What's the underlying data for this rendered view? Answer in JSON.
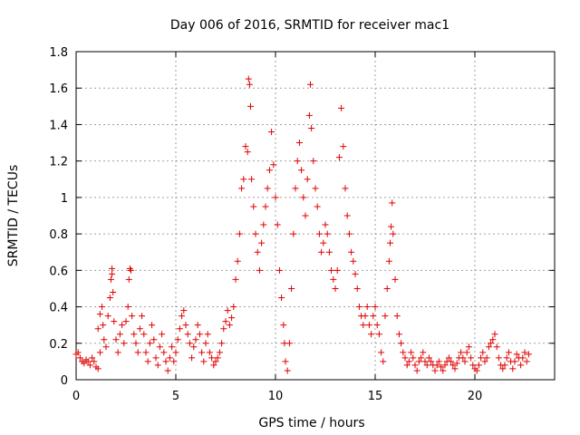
{
  "chart_data": {
    "type": "scatter",
    "title": "Day 006 of 2016, SRMTID for receiver mac1",
    "xlabel": "GPS time / hours",
    "ylabel": "SRMTID / TECUs",
    "xlim": [
      0,
      24
    ],
    "ylim": [
      0,
      1.8
    ],
    "xticks": [
      0,
      5,
      10,
      15,
      20
    ],
    "yticks": [
      0,
      0.2,
      0.4,
      0.6,
      0.8,
      1,
      1.2,
      1.4,
      1.6,
      1.8
    ],
    "xtick_labels": [
      "0",
      "5",
      "10",
      "15",
      "20"
    ],
    "ytick_labels": [
      "0",
      "0.2",
      "0.4",
      "0.6",
      "0.8",
      "1",
      "1.2",
      "1.4",
      "1.6",
      "1.8"
    ],
    "grid": true,
    "marker": "plus",
    "color": "#e00000",
    "series": [
      {
        "name": "SRMTID",
        "points": [
          [
            0.0,
            0.14
          ],
          [
            0.1,
            0.15
          ],
          [
            0.2,
            0.12
          ],
          [
            0.3,
            0.1
          ],
          [
            0.4,
            0.09
          ],
          [
            0.5,
            0.11
          ],
          [
            0.6,
            0.1
          ],
          [
            0.7,
            0.08
          ],
          [
            0.8,
            0.12
          ],
          [
            0.9,
            0.1
          ],
          [
            1.0,
            0.07
          ],
          [
            1.1,
            0.06
          ],
          [
            1.2,
            0.15
          ],
          [
            1.1,
            0.28
          ],
          [
            1.2,
            0.36
          ],
          [
            1.3,
            0.4
          ],
          [
            1.35,
            0.3
          ],
          [
            1.4,
            0.22
          ],
          [
            1.5,
            0.18
          ],
          [
            1.6,
            0.35
          ],
          [
            1.7,
            0.45
          ],
          [
            1.75,
            0.55
          ],
          [
            1.8,
            0.61
          ],
          [
            1.8,
            0.58
          ],
          [
            1.85,
            0.48
          ],
          [
            1.9,
            0.32
          ],
          [
            2.0,
            0.22
          ],
          [
            2.1,
            0.15
          ],
          [
            2.2,
            0.25
          ],
          [
            2.3,
            0.3
          ],
          [
            2.4,
            0.2
          ],
          [
            2.5,
            0.32
          ],
          [
            2.6,
            0.4
          ],
          [
            2.65,
            0.55
          ],
          [
            2.7,
            0.61
          ],
          [
            2.75,
            0.6
          ],
          [
            2.8,
            0.35
          ],
          [
            2.9,
            0.25
          ],
          [
            3.0,
            0.2
          ],
          [
            3.1,
            0.15
          ],
          [
            3.2,
            0.28
          ],
          [
            3.3,
            0.35
          ],
          [
            3.4,
            0.25
          ],
          [
            3.5,
            0.15
          ],
          [
            3.6,
            0.1
          ],
          [
            3.7,
            0.2
          ],
          [
            3.8,
            0.3
          ],
          [
            3.9,
            0.22
          ],
          [
            4.0,
            0.12
          ],
          [
            4.1,
            0.08
          ],
          [
            4.2,
            0.18
          ],
          [
            4.3,
            0.25
          ],
          [
            4.4,
            0.15
          ],
          [
            4.5,
            0.1
          ],
          [
            4.6,
            0.05
          ],
          [
            4.7,
            0.12
          ],
          [
            4.8,
            0.18
          ],
          [
            4.9,
            0.1
          ],
          [
            5.0,
            0.15
          ],
          [
            5.1,
            0.22
          ],
          [
            5.2,
            0.28
          ],
          [
            5.3,
            0.35
          ],
          [
            5.4,
            0.38
          ],
          [
            5.5,
            0.3
          ],
          [
            5.6,
            0.25
          ],
          [
            5.7,
            0.2
          ],
          [
            5.8,
            0.12
          ],
          [
            5.9,
            0.18
          ],
          [
            6.0,
            0.22
          ],
          [
            6.1,
            0.3
          ],
          [
            6.2,
            0.25
          ],
          [
            6.3,
            0.15
          ],
          [
            6.4,
            0.1
          ],
          [
            6.5,
            0.2
          ],
          [
            6.6,
            0.25
          ],
          [
            6.7,
            0.15
          ],
          [
            6.8,
            0.12
          ],
          [
            6.9,
            0.08
          ],
          [
            7.0,
            0.1
          ],
          [
            7.1,
            0.12
          ],
          [
            7.2,
            0.15
          ],
          [
            7.3,
            0.2
          ],
          [
            7.4,
            0.28
          ],
          [
            7.5,
            0.32
          ],
          [
            7.6,
            0.38
          ],
          [
            7.7,
            0.3
          ],
          [
            7.8,
            0.34
          ],
          [
            7.9,
            0.4
          ],
          [
            8.0,
            0.55
          ],
          [
            8.1,
            0.65
          ],
          [
            8.2,
            0.8
          ],
          [
            8.3,
            1.05
          ],
          [
            8.4,
            1.1
          ],
          [
            8.5,
            1.28
          ],
          [
            8.6,
            1.25
          ],
          [
            8.65,
            1.65
          ],
          [
            8.7,
            1.62
          ],
          [
            8.75,
            1.5
          ],
          [
            8.8,
            1.1
          ],
          [
            8.9,
            0.95
          ],
          [
            9.0,
            0.8
          ],
          [
            9.1,
            0.7
          ],
          [
            9.2,
            0.6
          ],
          [
            9.3,
            0.75
          ],
          [
            9.4,
            0.85
          ],
          [
            9.5,
            0.95
          ],
          [
            9.6,
            1.05
          ],
          [
            9.7,
            1.15
          ],
          [
            9.8,
            1.36
          ],
          [
            9.9,
            1.18
          ],
          [
            10.0,
            1.0
          ],
          [
            10.1,
            0.85
          ],
          [
            10.2,
            0.6
          ],
          [
            10.3,
            0.45
          ],
          [
            10.4,
            0.3
          ],
          [
            10.45,
            0.2
          ],
          [
            10.5,
            0.1
          ],
          [
            10.6,
            0.05
          ],
          [
            10.7,
            0.2
          ],
          [
            10.8,
            0.5
          ],
          [
            10.9,
            0.8
          ],
          [
            11.0,
            1.05
          ],
          [
            11.1,
            1.2
          ],
          [
            11.2,
            1.3
          ],
          [
            11.3,
            1.15
          ],
          [
            11.4,
            1.0
          ],
          [
            11.5,
            0.9
          ],
          [
            11.6,
            1.1
          ],
          [
            11.7,
            1.45
          ],
          [
            11.75,
            1.62
          ],
          [
            11.8,
            1.38
          ],
          [
            11.9,
            1.2
          ],
          [
            12.0,
            1.05
          ],
          [
            12.1,
            0.95
          ],
          [
            12.2,
            0.8
          ],
          [
            12.3,
            0.7
          ],
          [
            12.4,
            0.75
          ],
          [
            12.5,
            0.85
          ],
          [
            12.6,
            0.8
          ],
          [
            12.7,
            0.7
          ],
          [
            12.8,
            0.6
          ],
          [
            12.9,
            0.55
          ],
          [
            13.0,
            0.5
          ],
          [
            13.1,
            0.6
          ],
          [
            13.2,
            1.22
          ],
          [
            13.3,
            1.49
          ],
          [
            13.4,
            1.28
          ],
          [
            13.5,
            1.05
          ],
          [
            13.6,
            0.9
          ],
          [
            13.7,
            0.8
          ],
          [
            13.8,
            0.7
          ],
          [
            13.9,
            0.65
          ],
          [
            14.0,
            0.58
          ],
          [
            14.1,
            0.5
          ],
          [
            14.2,
            0.4
          ],
          [
            14.3,
            0.35
          ],
          [
            14.4,
            0.3
          ],
          [
            14.5,
            0.35
          ],
          [
            14.6,
            0.4
          ],
          [
            14.7,
            0.3
          ],
          [
            14.8,
            0.25
          ],
          [
            14.9,
            0.35
          ],
          [
            15.0,
            0.4
          ],
          [
            15.1,
            0.3
          ],
          [
            15.2,
            0.25
          ],
          [
            15.3,
            0.15
          ],
          [
            15.4,
            0.1
          ],
          [
            15.5,
            0.35
          ],
          [
            15.6,
            0.5
          ],
          [
            15.7,
            0.65
          ],
          [
            15.75,
            0.75
          ],
          [
            15.8,
            0.84
          ],
          [
            15.85,
            0.97
          ],
          [
            15.9,
            0.8
          ],
          [
            16.0,
            0.55
          ],
          [
            16.1,
            0.35
          ],
          [
            16.2,
            0.25
          ],
          [
            16.3,
            0.2
          ],
          [
            16.4,
            0.15
          ],
          [
            16.5,
            0.12
          ],
          [
            16.6,
            0.08
          ],
          [
            16.7,
            0.1
          ],
          [
            16.8,
            0.15
          ],
          [
            16.9,
            0.12
          ],
          [
            17.0,
            0.08
          ],
          [
            17.1,
            0.05
          ],
          [
            17.2,
            0.1
          ],
          [
            17.3,
            0.12
          ],
          [
            17.4,
            0.15
          ],
          [
            17.5,
            0.1
          ],
          [
            17.6,
            0.08
          ],
          [
            17.7,
            0.12
          ],
          [
            17.8,
            0.1
          ],
          [
            17.9,
            0.08
          ],
          [
            18.0,
            0.05
          ],
          [
            18.1,
            0.08
          ],
          [
            18.2,
            0.1
          ],
          [
            18.3,
            0.07
          ],
          [
            18.4,
            0.05
          ],
          [
            18.5,
            0.08
          ],
          [
            18.6,
            0.1
          ],
          [
            18.7,
            0.12
          ],
          [
            18.8,
            0.1
          ],
          [
            18.9,
            0.08
          ],
          [
            19.0,
            0.06
          ],
          [
            19.1,
            0.09
          ],
          [
            19.2,
            0.12
          ],
          [
            19.3,
            0.15
          ],
          [
            19.4,
            0.12
          ],
          [
            19.5,
            0.1
          ],
          [
            19.6,
            0.15
          ],
          [
            19.7,
            0.18
          ],
          [
            19.8,
            0.12
          ],
          [
            19.9,
            0.08
          ],
          [
            20.0,
            0.06
          ],
          [
            20.1,
            0.05
          ],
          [
            20.2,
            0.08
          ],
          [
            20.3,
            0.12
          ],
          [
            20.4,
            0.15
          ],
          [
            20.5,
            0.1
          ],
          [
            20.6,
            0.12
          ],
          [
            20.7,
            0.18
          ],
          [
            20.8,
            0.2
          ],
          [
            20.9,
            0.22
          ],
          [
            21.0,
            0.25
          ],
          [
            21.1,
            0.18
          ],
          [
            21.2,
            0.12
          ],
          [
            21.3,
            0.08
          ],
          [
            21.4,
            0.06
          ],
          [
            21.5,
            0.08
          ],
          [
            21.6,
            0.12
          ],
          [
            21.7,
            0.15
          ],
          [
            21.8,
            0.1
          ],
          [
            21.9,
            0.06
          ],
          [
            22.0,
            0.1
          ],
          [
            22.1,
            0.14
          ],
          [
            22.2,
            0.12
          ],
          [
            22.3,
            0.08
          ],
          [
            22.4,
            0.12
          ],
          [
            22.5,
            0.15
          ],
          [
            22.6,
            0.1
          ],
          [
            22.7,
            0.14
          ]
        ]
      }
    ]
  }
}
